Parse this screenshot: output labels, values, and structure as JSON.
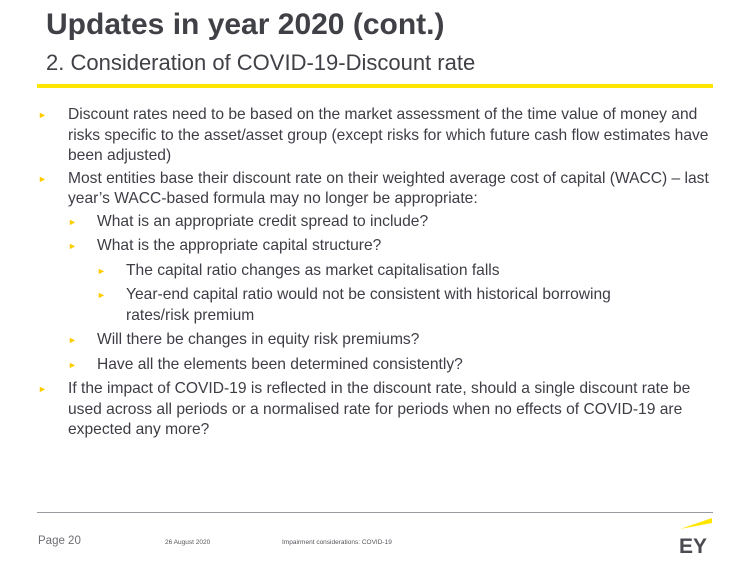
{
  "header": {
    "title": "Updates in year 2020 (cont.)",
    "subtitle": "2. Consideration of COVID-19-Discount rate"
  },
  "bullets": [
    {
      "level": 1,
      "text": "Discount rates need to be based on the market assessment of the time value of money and risks specific to the asset/asset group (except risks for which future cash flow estimates have been adjusted)"
    },
    {
      "level": 1,
      "text": "Most entities base their discount rate on their weighted average cost of capital (WACC) – last year’s WACC-based formula may no longer be appropriate:"
    },
    {
      "level": 2,
      "text": "What is an appropriate credit spread to include?"
    },
    {
      "level": 2,
      "text": "What is the appropriate capital structure?"
    },
    {
      "level": 3,
      "text": "The capital ratio changes as market capitalisation falls"
    },
    {
      "level": 3,
      "text": "Year-end capital ratio would not be consistent with historical borrowing rates/risk premium"
    },
    {
      "level": 2,
      "text": "Will there be changes in equity risk premiums?"
    },
    {
      "level": 2,
      "text": "Have all the elements been determined consistently?"
    },
    {
      "level": 1,
      "text": "If the impact of COVID-19 is reflected in the discount rate, should a single discount rate be used across all periods or a normalised rate for periods when no effects of COVID-19 are expected any more?"
    }
  ],
  "footer": {
    "page": "Page 20",
    "date": "26 August 2020",
    "topic": "Impairment considerations: COVID-19"
  },
  "logo": {
    "text": "EY",
    "accent_color": "#ffe600"
  },
  "colors": {
    "accent": "#ffe600",
    "bullet_arrow": "#ffcc00",
    "text": "#3d3d45"
  }
}
